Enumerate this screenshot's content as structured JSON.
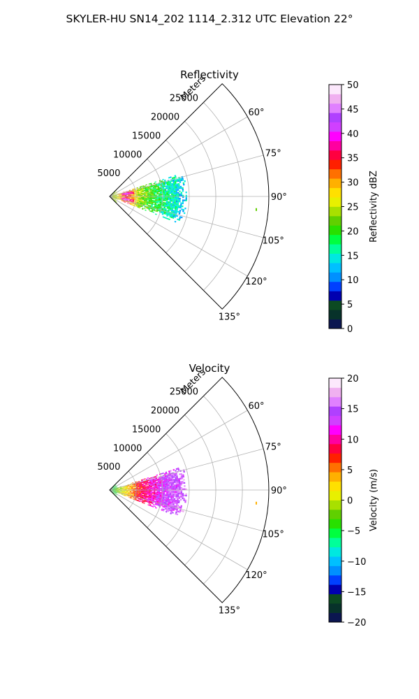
{
  "figure": {
    "title": "SKYLER-HU  SN14_202  1114_2.312 UTC Elevation 22°"
  },
  "chart_data": [
    {
      "type": "heatmap",
      "projection": "polar-sector",
      "title": "Reflectivity",
      "radial_label": "Meters",
      "radial_ticks": [
        5000,
        10000,
        15000,
        20000,
        25000
      ],
      "radial_tick_labels": [
        "5000",
        "10000",
        "15000",
        "20000",
        "25000"
      ],
      "radial_range": [
        0,
        30000
      ],
      "azimuth_range": [
        45,
        135
      ],
      "azimuth_ticks": [
        60,
        75,
        90,
        105,
        120,
        135
      ],
      "azimuth_tick_labels": [
        "60°",
        "75°",
        "90°",
        "105°",
        "120°",
        "135°"
      ],
      "grid": true,
      "colorbar": {
        "label": "Reflectivity dBZ",
        "range": [
          0,
          50
        ],
        "ticks": [
          0,
          5,
          10,
          15,
          20,
          25,
          30,
          35,
          40,
          45,
          50
        ],
        "tick_labels": [
          "0",
          "5",
          "10",
          "15",
          "20",
          "25",
          "30",
          "35",
          "40",
          "45",
          "50"
        ],
        "colormap": [
          "#0b1650",
          "#07322a",
          "#0c4a22",
          "#0000b0",
          "#0040ff",
          "#0090ff",
          "#00c0ff",
          "#00e8e0",
          "#00ff9a",
          "#00ff40",
          "#28e000",
          "#60d000",
          "#a8e000",
          "#e8f000",
          "#ffe000",
          "#ffb000",
          "#ff7000",
          "#ff2000",
          "#ff0040",
          "#ff00a0",
          "#ff00ff",
          "#d040ff",
          "#b040ff",
          "#e080ff",
          "#f0b0f0",
          "#fce8fc"
        ]
      },
      "data_extent_m": [
        0,
        14500
      ],
      "data_azimuth_extent": [
        72,
        111
      ],
      "profile": [
        {
          "range_m": 0,
          "value": 24
        },
        {
          "range_m": 1500,
          "value": 27
        },
        {
          "range_m": 3000,
          "value": 36
        },
        {
          "range_m": 5500,
          "value": 24
        },
        {
          "range_m": 8000,
          "value": 20
        },
        {
          "range_m": 11000,
          "value": 16
        },
        {
          "range_m": 14000,
          "value": 13
        }
      ]
    },
    {
      "type": "heatmap",
      "projection": "polar-sector",
      "title": "Velocity",
      "radial_label": "Meters",
      "radial_ticks": [
        5000,
        10000,
        15000,
        20000,
        25000
      ],
      "radial_tick_labels": [
        "5000",
        "10000",
        "15000",
        "20000",
        "25000"
      ],
      "radial_range": [
        0,
        30000
      ],
      "azimuth_range": [
        45,
        135
      ],
      "azimuth_ticks": [
        60,
        75,
        90,
        105,
        120,
        135
      ],
      "azimuth_tick_labels": [
        "60°",
        "75°",
        "90°",
        "105°",
        "120°",
        "135°"
      ],
      "grid": true,
      "colorbar": {
        "label": "Velocity (m/s)",
        "range": [
          -20,
          20
        ],
        "ticks": [
          -20,
          -15,
          -10,
          -5,
          0,
          5,
          10,
          15,
          20
        ],
        "tick_labels": [
          "−20",
          "−15",
          "−10",
          "−5",
          "0",
          "5",
          "10",
          "15",
          "20"
        ],
        "colormap": [
          "#0b1650",
          "#07322a",
          "#0c4a22",
          "#0000b0",
          "#0040ff",
          "#0090ff",
          "#00c0ff",
          "#00e8e0",
          "#00ff9a",
          "#00ff40",
          "#28e000",
          "#60d000",
          "#a8e000",
          "#e8f000",
          "#ffe000",
          "#ffb000",
          "#ff7000",
          "#ff2000",
          "#ff0040",
          "#ff00a0",
          "#ff00ff",
          "#d040ff",
          "#b040ff",
          "#e080ff",
          "#f0b0f0",
          "#fce8fc"
        ]
      },
      "data_extent_m": [
        0,
        14500
      ],
      "data_azimuth_extent": [
        72,
        111
      ],
      "profile": [
        {
          "range_m": 0,
          "value": -5
        },
        {
          "range_m": 3000,
          "value": 2
        },
        {
          "range_m": 6000,
          "value": 9
        },
        {
          "range_m": 9000,
          "value": 12
        },
        {
          "range_m": 11000,
          "value": 14
        },
        {
          "range_m": 14000,
          "value": 15
        }
      ]
    }
  ]
}
